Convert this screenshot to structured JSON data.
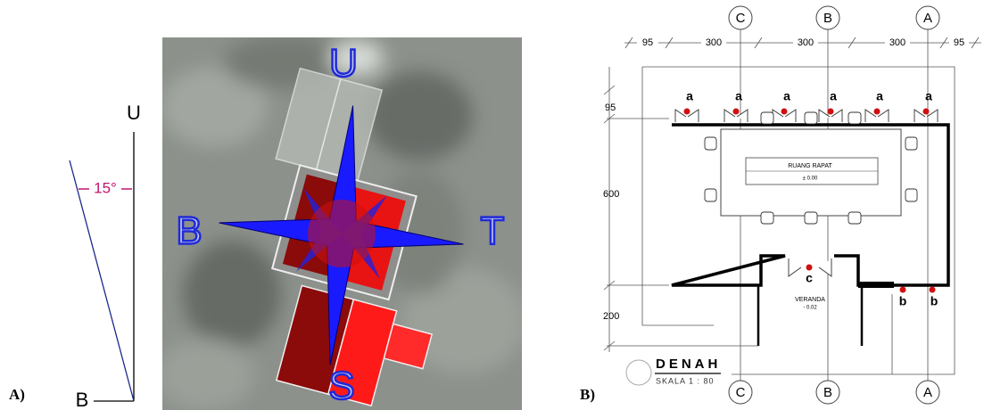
{
  "panel_a": {
    "label": "A)",
    "north": "U",
    "west": "B",
    "angle": "15°"
  },
  "satellite": {
    "north": "U",
    "west": "B",
    "east": "T",
    "south": "S"
  },
  "panel_b": {
    "label": "B)",
    "top_dims": [
      "95",
      "300",
      "300",
      "300",
      "95"
    ],
    "left_dims": [
      "95",
      "600",
      "200"
    ],
    "grid_top": [
      "C",
      "B",
      "A"
    ],
    "grid_bottom": [
      "C",
      "B",
      "A"
    ],
    "points_a": [
      "a",
      "a",
      "a",
      "a",
      "a",
      "a"
    ],
    "points_b": [
      "b",
      "b"
    ],
    "point_c": "c",
    "room": "RUANG RAPAT",
    "room_level": "± 0.00",
    "veranda": "VERANDA",
    "veranda_level": "- 0.02",
    "title": "DENAH",
    "scale": "SKALA 1 :   80"
  }
}
